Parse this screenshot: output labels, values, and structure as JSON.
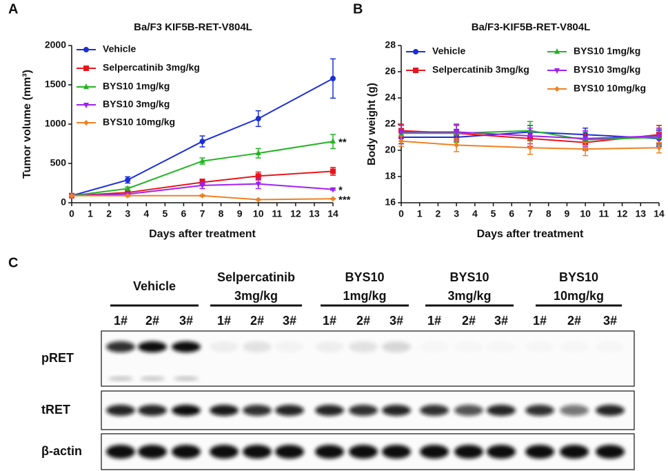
{
  "chart_data": [
    {
      "type": "line",
      "panel": "A",
      "title": "Ba/F3 KIF5B-RET-V804L",
      "x_label": "Days after treatment",
      "y_label": "Tumor volume (mm³)",
      "x": [
        0,
        3,
        7,
        10,
        14
      ],
      "xlim": [
        0,
        14
      ],
      "xticks": [
        0,
        1,
        2,
        3,
        4,
        5,
        6,
        7,
        8,
        9,
        10,
        11,
        12,
        13,
        14
      ],
      "ylim": [
        0,
        2000
      ],
      "yticks": [
        0,
        500,
        1000,
        1500,
        2000
      ],
      "series": [
        {
          "name": "Vehicle",
          "color": "#1a2fd6",
          "marker": "circle",
          "values": [
            90,
            290,
            780,
            1070,
            1580
          ],
          "errors": [
            10,
            40,
            70,
            100,
            250
          ]
        },
        {
          "name": "Selpercatinib 3mg/kg",
          "color": "#e8141c",
          "marker": "square",
          "values": [
            90,
            130,
            260,
            340,
            400
          ],
          "errors": [
            10,
            20,
            40,
            50,
            50
          ]
        },
        {
          "name": "BYS10 1mg/kg",
          "color": "#22b422",
          "marker": "triangle-up",
          "values": [
            90,
            180,
            530,
            630,
            780
          ],
          "errors": [
            10,
            20,
            40,
            60,
            90
          ],
          "annotation": "**"
        },
        {
          "name": "BYS10 3mg/kg",
          "color": "#a020f0",
          "marker": "triangle-down",
          "values": [
            90,
            110,
            220,
            240,
            170
          ],
          "errors": [
            10,
            15,
            40,
            60,
            10
          ],
          "annotation": "*"
        },
        {
          "name": "BYS10 10mg/kg",
          "color": "#f08020",
          "marker": "diamond",
          "values": [
            90,
            90,
            90,
            40,
            50
          ],
          "errors": [
            10,
            10,
            10,
            5,
            5
          ],
          "annotation": "***"
        }
      ]
    },
    {
      "type": "line",
      "panel": "B",
      "title": "Ba/F3-KIF5B-RET-V804L",
      "x_label": "Days after treatment",
      "y_label": "Body weight (g)",
      "x": [
        0,
        3,
        7,
        10,
        14
      ],
      "xlim": [
        0,
        14
      ],
      "xticks": [
        0,
        1,
        2,
        3,
        4,
        5,
        6,
        7,
        8,
        9,
        10,
        11,
        12,
        13,
        14
      ],
      "ylim": [
        16,
        28
      ],
      "yticks": [
        16,
        18,
        20,
        22,
        24,
        26,
        28
      ],
      "series": [
        {
          "name": "Vehicle",
          "color": "#1a2fd6",
          "marker": "circle",
          "values": [
            21.0,
            21.0,
            21.4,
            21.2,
            20.9
          ],
          "errors": [
            0.5,
            0.6,
            0.5,
            0.5,
            0.6
          ]
        },
        {
          "name": "Selpercatinib 3mg/kg",
          "color": "#e8141c",
          "marker": "square",
          "values": [
            21.5,
            21.3,
            20.9,
            20.6,
            21.2
          ],
          "errors": [
            0.5,
            0.6,
            0.6,
            0.6,
            0.7
          ]
        },
        {
          "name": "BYS10 1mg/kg",
          "color": "#22b422",
          "marker": "triangle-up",
          "values": [
            21.3,
            21.3,
            21.5,
            20.8,
            21.0
          ],
          "errors": [
            0.6,
            0.7,
            0.7,
            0.6,
            0.6
          ]
        },
        {
          "name": "BYS10 3mg/kg",
          "color": "#a020f0",
          "marker": "triangle-down",
          "values": [
            21.4,
            21.4,
            21.1,
            20.9,
            21.1
          ],
          "errors": [
            0.5,
            0.6,
            0.6,
            0.6,
            0.6
          ]
        },
        {
          "name": "BYS10 10mg/kg",
          "color": "#f08020",
          "marker": "diamond",
          "values": [
            20.7,
            20.4,
            20.2,
            20.1,
            20.2
          ],
          "errors": [
            0.4,
            0.5,
            0.5,
            0.5,
            0.4
          ]
        }
      ]
    }
  ],
  "blot": {
    "panel": "C",
    "groups": [
      {
        "label_lines": [
          "Vehicle"
        ],
        "lanes": [
          "1#",
          "2#",
          "3#"
        ]
      },
      {
        "label_lines": [
          "Selpercatinib",
          "3mg/kg"
        ],
        "lanes": [
          "1#",
          "2#",
          "3#"
        ]
      },
      {
        "label_lines": [
          "BYS10",
          "1mg/kg"
        ],
        "lanes": [
          "1#",
          "2#",
          "3#"
        ]
      },
      {
        "label_lines": [
          "BYS10",
          "3mg/kg"
        ],
        "lanes": [
          "1#",
          "2#",
          "3#"
        ]
      },
      {
        "label_lines": [
          "BYS10",
          "10mg/kg"
        ],
        "lanes": [
          "1#",
          "2#",
          "3#"
        ]
      }
    ],
    "rows": [
      "pRET",
      "tRET",
      "β-actin"
    ]
  }
}
